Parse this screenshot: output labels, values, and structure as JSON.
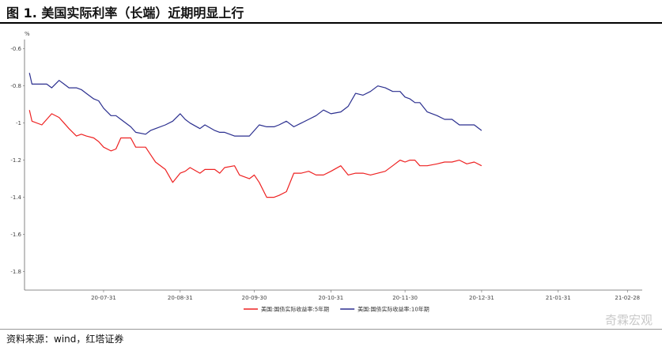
{
  "header": {
    "title": "图 1. 美国实际利率（长端）近期明显上行"
  },
  "footer": {
    "source": "资料来源：wind，红塔证券",
    "watermark": "奇霖宏观"
  },
  "chart_data": {
    "type": "line",
    "title": "",
    "ylabel": "%",
    "ylim": [
      -1.9,
      -0.55
    ],
    "yticks": [
      -0.6,
      -0.8,
      -1.0,
      -1.2,
      -1.4,
      -1.6,
      -1.8
    ],
    "ytick_labels": [
      "-0.6",
      "-0.8",
      "-1",
      "-1.2",
      "-1.4",
      "-1.6",
      "-1.8"
    ],
    "xticks": [
      "20-07-31",
      "20-08-31",
      "20-09-30",
      "20-10-31",
      "20-11-30",
      "20-12-31",
      "21-01-31",
      "21-02-28"
    ],
    "grid": false,
    "legend_position": "bottom-center",
    "colors": {
      "5y": "#ee2222",
      "10y": "#2b2f8f"
    },
    "series": [
      {
        "name": "美国:国债实际收益率:5年期",
        "points": [
          [
            "2020-07-01",
            -0.93
          ],
          [
            "2020-07-02",
            -0.99
          ],
          [
            "2020-07-06",
            -1.01
          ],
          [
            "2020-07-08",
            -0.98
          ],
          [
            "2020-07-10",
            -0.95
          ],
          [
            "2020-07-13",
            -0.97
          ],
          [
            "2020-07-15",
            -1.0
          ],
          [
            "2020-07-17",
            -1.03
          ],
          [
            "2020-07-20",
            -1.07
          ],
          [
            "2020-07-22",
            -1.06
          ],
          [
            "2020-07-24",
            -1.07
          ],
          [
            "2020-07-27",
            -1.08
          ],
          [
            "2020-07-29",
            -1.1
          ],
          [
            "2020-07-31",
            -1.13
          ],
          [
            "2020-08-03",
            -1.15
          ],
          [
            "2020-08-05",
            -1.14
          ],
          [
            "2020-08-07",
            -1.08
          ],
          [
            "2020-08-11",
            -1.08
          ],
          [
            "2020-08-13",
            -1.13
          ],
          [
            "2020-08-17",
            -1.13
          ],
          [
            "2020-08-19",
            -1.17
          ],
          [
            "2020-08-21",
            -1.21
          ],
          [
            "2020-08-25",
            -1.25
          ],
          [
            "2020-08-28",
            -1.32
          ],
          [
            "2020-08-31",
            -1.27
          ],
          [
            "2020-09-02",
            -1.26
          ],
          [
            "2020-09-04",
            -1.24
          ],
          [
            "2020-09-08",
            -1.27
          ],
          [
            "2020-09-10",
            -1.25
          ],
          [
            "2020-09-14",
            -1.25
          ],
          [
            "2020-09-16",
            -1.27
          ],
          [
            "2020-09-18",
            -1.24
          ],
          [
            "2020-09-22",
            -1.23
          ],
          [
            "2020-09-24",
            -1.28
          ],
          [
            "2020-09-28",
            -1.3
          ],
          [
            "2020-09-30",
            -1.28
          ],
          [
            "2020-10-02",
            -1.32
          ],
          [
            "2020-10-05",
            -1.4
          ],
          [
            "2020-10-08",
            -1.4
          ],
          [
            "2020-10-10",
            -1.39
          ],
          [
            "2020-10-13",
            -1.37
          ],
          [
            "2020-10-16",
            -1.27
          ],
          [
            "2020-10-19",
            -1.27
          ],
          [
            "2020-10-22",
            -1.26
          ],
          [
            "2020-10-25",
            -1.28
          ],
          [
            "2020-10-28",
            -1.28
          ],
          [
            "2020-10-31",
            -1.26
          ],
          [
            "2020-11-04",
            -1.23
          ],
          [
            "2020-11-07",
            -1.28
          ],
          [
            "2020-11-10",
            -1.27
          ],
          [
            "2020-11-13",
            -1.27
          ],
          [
            "2020-11-16",
            -1.28
          ],
          [
            "2020-11-19",
            -1.27
          ],
          [
            "2020-11-22",
            -1.26
          ],
          [
            "2020-11-25",
            -1.23
          ],
          [
            "2020-11-28",
            -1.2
          ],
          [
            "2020-11-30",
            -1.21
          ],
          [
            "2020-12-02",
            -1.2
          ],
          [
            "2020-12-04",
            -1.2
          ],
          [
            "2020-12-06",
            -1.23
          ],
          [
            "2020-12-09",
            -1.23
          ],
          [
            "2020-12-13",
            -1.22
          ],
          [
            "2020-12-16",
            -1.21
          ],
          [
            "2020-12-19",
            -1.21
          ],
          [
            "2020-12-22",
            -1.2
          ],
          [
            "2020-12-25",
            -1.22
          ],
          [
            "2020-12-28",
            -1.21
          ],
          [
            "2020-12-31",
            -1.23
          ]
        ]
      },
      {
        "name": "美国:国债实际收益率:10年期",
        "points": [
          [
            "2020-07-01",
            -0.73
          ],
          [
            "2020-07-02",
            -0.79
          ],
          [
            "2020-07-06",
            -0.79
          ],
          [
            "2020-07-08",
            -0.79
          ],
          [
            "2020-07-10",
            -0.81
          ],
          [
            "2020-07-13",
            -0.77
          ],
          [
            "2020-07-15",
            -0.79
          ],
          [
            "2020-07-17",
            -0.81
          ],
          [
            "2020-07-20",
            -0.81
          ],
          [
            "2020-07-22",
            -0.82
          ],
          [
            "2020-07-24",
            -0.84
          ],
          [
            "2020-07-27",
            -0.87
          ],
          [
            "2020-07-29",
            -0.88
          ],
          [
            "2020-07-31",
            -0.92
          ],
          [
            "2020-08-03",
            -0.96
          ],
          [
            "2020-08-05",
            -0.96
          ],
          [
            "2020-08-07",
            -0.98
          ],
          [
            "2020-08-11",
            -1.02
          ],
          [
            "2020-08-13",
            -1.05
          ],
          [
            "2020-08-17",
            -1.06
          ],
          [
            "2020-08-19",
            -1.04
          ],
          [
            "2020-08-21",
            -1.03
          ],
          [
            "2020-08-25",
            -1.01
          ],
          [
            "2020-08-28",
            -0.99
          ],
          [
            "2020-08-31",
            -0.95
          ],
          [
            "2020-09-02",
            -0.98
          ],
          [
            "2020-09-04",
            -1.0
          ],
          [
            "2020-09-08",
            -1.03
          ],
          [
            "2020-09-10",
            -1.01
          ],
          [
            "2020-09-14",
            -1.04
          ],
          [
            "2020-09-16",
            -1.05
          ],
          [
            "2020-09-18",
            -1.05
          ],
          [
            "2020-09-22",
            -1.07
          ],
          [
            "2020-09-24",
            -1.07
          ],
          [
            "2020-09-28",
            -1.07
          ],
          [
            "2020-09-30",
            -1.04
          ],
          [
            "2020-10-02",
            -1.01
          ],
          [
            "2020-10-05",
            -1.02
          ],
          [
            "2020-10-08",
            -1.02
          ],
          [
            "2020-10-10",
            -1.01
          ],
          [
            "2020-10-13",
            -0.99
          ],
          [
            "2020-10-16",
            -1.02
          ],
          [
            "2020-10-19",
            -1.0
          ],
          [
            "2020-10-22",
            -0.98
          ],
          [
            "2020-10-25",
            -0.96
          ],
          [
            "2020-10-28",
            -0.93
          ],
          [
            "2020-10-31",
            -0.95
          ],
          [
            "2020-11-04",
            -0.94
          ],
          [
            "2020-11-07",
            -0.91
          ],
          [
            "2020-11-10",
            -0.84
          ],
          [
            "2020-11-13",
            -0.85
          ],
          [
            "2020-11-16",
            -0.83
          ],
          [
            "2020-11-19",
            -0.8
          ],
          [
            "2020-11-22",
            -0.81
          ],
          [
            "2020-11-25",
            -0.83
          ],
          [
            "2020-11-28",
            -0.83
          ],
          [
            "2020-11-30",
            -0.86
          ],
          [
            "2020-12-02",
            -0.87
          ],
          [
            "2020-12-04",
            -0.89
          ],
          [
            "2020-12-06",
            -0.89
          ],
          [
            "2020-12-09",
            -0.94
          ],
          [
            "2020-12-13",
            -0.96
          ],
          [
            "2020-12-16",
            -0.98
          ],
          [
            "2020-12-19",
            -0.98
          ],
          [
            "2020-12-22",
            -1.01
          ],
          [
            "2020-12-25",
            -1.01
          ],
          [
            "2020-12-28",
            -1.01
          ],
          [
            "2020-12-31",
            -1.04
          ]
        ]
      }
    ]
  }
}
